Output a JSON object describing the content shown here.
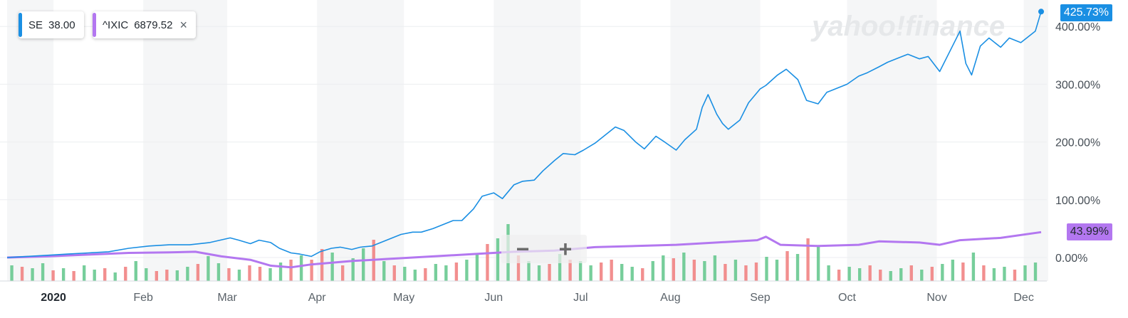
{
  "legend": [
    {
      "symbol": "SE",
      "value": "38.00",
      "color": "#1a8fe3",
      "closable": false
    },
    {
      "symbol": "^IXIC",
      "value": "6879.52",
      "color": "#b377f0",
      "closable": true
    }
  ],
  "close_icon": "×",
  "watermark": "yahoo!finance",
  "zoom": {
    "minus": "−",
    "plus": "+"
  },
  "last_tags": {
    "se": "425.73%",
    "ixic": "43.99%"
  },
  "chart_data": {
    "type": "line",
    "title": "",
    "xlabel": "",
    "ylabel": "",
    "y_unit": "percent change",
    "ylim": [
      -35,
      440
    ],
    "y_ticks": [
      0,
      100,
      200,
      300,
      400
    ],
    "y_tick_labels": [
      "0.00%",
      "100.00%",
      "200.00%",
      "300.00%",
      "400.00%"
    ],
    "x_tick_labels": [
      "2020",
      "Feb",
      "Mar",
      "Apr",
      "May",
      "Jun",
      "Jul",
      "Aug",
      "Sep",
      "Oct",
      "Nov",
      "Dec"
    ],
    "x_range": [
      "2019-12-16",
      "2020-12-07"
    ],
    "grid": true,
    "series": [
      {
        "name": "SE",
        "color": "#1a8fe3",
        "points": [
          [
            "2019-12-16",
            0
          ],
          [
            "2019-12-23",
            2
          ],
          [
            "2019-12-30",
            4
          ],
          [
            "2020-01-06",
            6
          ],
          [
            "2020-01-13",
            8
          ],
          [
            "2020-01-20",
            10
          ],
          [
            "2020-01-27",
            16
          ],
          [
            "2020-02-03",
            20
          ],
          [
            "2020-02-10",
            22
          ],
          [
            "2020-02-17",
            22
          ],
          [
            "2020-02-24",
            26
          ],
          [
            "2020-03-02",
            34
          ],
          [
            "2020-03-05",
            30
          ],
          [
            "2020-03-09",
            24
          ],
          [
            "2020-03-12",
            30
          ],
          [
            "2020-03-16",
            26
          ],
          [
            "2020-03-19",
            16
          ],
          [
            "2020-03-23",
            8
          ],
          [
            "2020-03-26",
            6
          ],
          [
            "2020-03-30",
            2
          ],
          [
            "2020-04-02",
            10
          ],
          [
            "2020-04-06",
            16
          ],
          [
            "2020-04-09",
            18
          ],
          [
            "2020-04-13",
            14
          ],
          [
            "2020-04-16",
            18
          ],
          [
            "2020-04-20",
            20
          ],
          [
            "2020-04-23",
            26
          ],
          [
            "2020-04-27",
            34
          ],
          [
            "2020-04-30",
            40
          ],
          [
            "2020-05-04",
            44
          ],
          [
            "2020-05-07",
            44
          ],
          [
            "2020-05-11",
            50
          ],
          [
            "2020-05-14",
            56
          ],
          [
            "2020-05-18",
            64
          ],
          [
            "2020-05-21",
            64
          ],
          [
            "2020-05-25",
            84
          ],
          [
            "2020-05-28",
            106
          ],
          [
            "2020-06-01",
            112
          ],
          [
            "2020-06-04",
            102
          ],
          [
            "2020-06-08",
            126
          ],
          [
            "2020-06-11",
            132
          ],
          [
            "2020-06-15",
            134
          ],
          [
            "2020-06-18",
            150
          ],
          [
            "2020-06-22",
            168
          ],
          [
            "2020-06-25",
            180
          ],
          [
            "2020-06-29",
            178
          ],
          [
            "2020-07-02",
            186
          ],
          [
            "2020-07-06",
            198
          ],
          [
            "2020-07-09",
            210
          ],
          [
            "2020-07-13",
            226
          ],
          [
            "2020-07-16",
            220
          ],
          [
            "2020-07-20",
            200
          ],
          [
            "2020-07-23",
            188
          ],
          [
            "2020-07-27",
            210
          ],
          [
            "2020-07-30",
            200
          ],
          [
            "2020-08-03",
            186
          ],
          [
            "2020-08-06",
            204
          ],
          [
            "2020-08-10",
            222
          ],
          [
            "2020-08-12",
            260
          ],
          [
            "2020-08-14",
            282
          ],
          [
            "2020-08-17",
            248
          ],
          [
            "2020-08-19",
            232
          ],
          [
            "2020-08-21",
            222
          ],
          [
            "2020-08-25",
            238
          ],
          [
            "2020-08-28",
            268
          ],
          [
            "2020-09-01",
            292
          ],
          [
            "2020-09-03",
            298
          ],
          [
            "2020-09-07",
            316
          ],
          [
            "2020-09-10",
            326
          ],
          [
            "2020-09-14",
            308
          ],
          [
            "2020-09-17",
            272
          ],
          [
            "2020-09-21",
            266
          ],
          [
            "2020-09-24",
            286
          ],
          [
            "2020-09-28",
            294
          ],
          [
            "2020-10-01",
            300
          ],
          [
            "2020-10-05",
            314
          ],
          [
            "2020-10-08",
            320
          ],
          [
            "2020-10-12",
            330
          ],
          [
            "2020-10-15",
            338
          ],
          [
            "2020-10-19",
            346
          ],
          [
            "2020-10-22",
            352
          ],
          [
            "2020-10-26",
            344
          ],
          [
            "2020-10-29",
            348
          ],
          [
            "2020-11-02",
            322
          ],
          [
            "2020-11-05",
            352
          ],
          [
            "2020-11-09",
            392
          ],
          [
            "2020-11-11",
            336
          ],
          [
            "2020-11-13",
            316
          ],
          [
            "2020-11-16",
            366
          ],
          [
            "2020-11-19",
            380
          ],
          [
            "2020-11-23",
            364
          ],
          [
            "2020-11-26",
            380
          ],
          [
            "2020-11-30",
            372
          ],
          [
            "2020-12-03",
            384
          ],
          [
            "2020-12-05",
            392
          ],
          [
            "2020-12-07",
            425.73
          ]
        ]
      },
      {
        "name": "^IXIC",
        "color": "#b377f0",
        "points": [
          [
            "2019-12-16",
            0
          ],
          [
            "2019-12-30",
            2
          ],
          [
            "2020-01-13",
            5
          ],
          [
            "2020-01-27",
            8
          ],
          [
            "2020-02-10",
            9
          ],
          [
            "2020-02-19",
            10
          ],
          [
            "2020-02-28",
            2
          ],
          [
            "2020-03-09",
            -4
          ],
          [
            "2020-03-16",
            -14
          ],
          [
            "2020-03-23",
            -17
          ],
          [
            "2020-03-30",
            -12
          ],
          [
            "2020-04-13",
            -6
          ],
          [
            "2020-04-27",
            -2
          ],
          [
            "2020-05-11",
            2
          ],
          [
            "2020-05-25",
            6
          ],
          [
            "2020-06-08",
            10
          ],
          [
            "2020-06-22",
            12
          ],
          [
            "2020-07-06",
            18
          ],
          [
            "2020-07-20",
            20
          ],
          [
            "2020-08-03",
            22
          ],
          [
            "2020-08-17",
            26
          ],
          [
            "2020-08-31",
            30
          ],
          [
            "2020-09-03",
            36
          ],
          [
            "2020-09-08",
            22
          ],
          [
            "2020-09-21",
            20
          ],
          [
            "2020-10-05",
            22
          ],
          [
            "2020-10-12",
            28
          ],
          [
            "2020-10-26",
            26
          ],
          [
            "2020-11-02",
            22
          ],
          [
            "2020-11-09",
            30
          ],
          [
            "2020-11-23",
            34
          ],
          [
            "2020-12-07",
            43.99
          ]
        ]
      }
    ],
    "volume_bars": {
      "colors": {
        "up": "#5fc58a",
        "down": "#f07b7b"
      },
      "values": [
        22,
        20,
        18,
        25,
        15,
        18,
        14,
        22,
        16,
        18,
        12,
        20,
        28,
        18,
        14,
        16,
        15,
        20,
        24,
        35,
        25,
        18,
        16,
        22,
        20,
        18,
        26,
        30,
        36,
        30,
        45,
        40,
        22,
        32,
        46,
        58,
        28,
        22,
        20,
        16,
        18,
        24,
        22,
        26,
        30,
        38,
        52,
        60,
        80,
        36,
        28,
        22,
        24,
        38,
        30,
        28,
        22,
        26,
        30,
        24,
        20,
        18,
        28,
        36,
        32,
        40,
        30,
        28,
        36,
        24,
        30,
        22,
        26,
        34,
        30,
        42,
        38,
        60,
        48,
        22,
        16,
        20,
        18,
        22,
        16,
        14,
        18,
        22,
        16,
        20,
        24,
        30,
        26,
        40,
        22,
        18,
        20,
        16,
        22,
        26
      ],
      "directions": [
        1,
        0,
        1,
        1,
        0,
        1,
        0,
        1,
        1,
        0,
        1,
        0,
        1,
        1,
        0,
        0,
        1,
        1,
        0,
        1,
        1,
        0,
        1,
        0,
        0,
        1,
        1,
        0,
        1,
        0,
        0,
        1,
        0,
        1,
        1,
        0,
        1,
        0,
        1,
        1,
        0,
        1,
        1,
        0,
        1,
        1,
        0,
        1,
        1,
        0,
        1,
        1,
        0,
        1,
        0,
        1,
        1,
        0,
        0,
        1,
        1,
        0,
        1,
        1,
        0,
        1,
        0,
        1,
        1,
        0,
        1,
        0,
        0,
        1,
        1,
        0,
        1,
        0,
        1,
        1,
        0,
        1,
        1,
        0,
        0,
        1,
        1,
        0,
        1,
        0,
        1,
        1,
        0,
        1,
        0,
        1,
        1,
        0,
        1,
        1
      ]
    }
  }
}
